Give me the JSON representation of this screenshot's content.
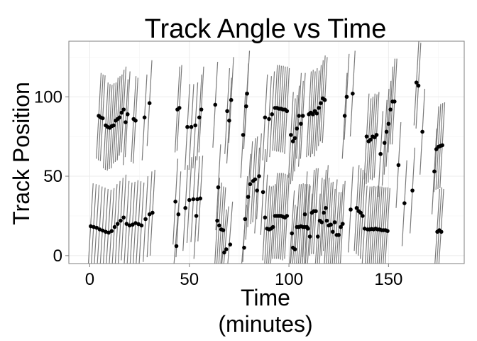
{
  "chart_data": {
    "type": "scatter",
    "title": "Track Angle vs Time",
    "xlabel_line1": "Time",
    "xlabel_line2": "(minutes)",
    "ylabel": "Track Position",
    "xlim": [
      -10.5,
      188
    ],
    "ylim": [
      -5,
      135
    ],
    "x_ticks": [
      0,
      50,
      100,
      150
    ],
    "y_ticks": [
      0,
      50,
      100
    ],
    "x_tick_labels": [
      "0",
      "50",
      "100",
      "150"
    ],
    "y_tick_labels": [
      "0",
      "50",
      "100"
    ],
    "grid": true,
    "segment_half_span_y": 27,
    "segment_half_span_x": 1.2,
    "series": [
      {
        "segments": true,
        "points": [
          [
            0.5,
            18.5
          ],
          [
            2,
            18
          ],
          [
            3.5,
            17.5
          ],
          [
            5,
            16.5
          ],
          [
            6.5,
            15.8
          ],
          [
            8,
            15
          ],
          [
            9.5,
            14.5
          ],
          [
            11,
            15.5
          ],
          [
            12.5,
            18
          ],
          [
            14,
            20
          ],
          [
            15.5,
            22
          ],
          [
            17,
            24
          ],
          [
            18.5,
            20
          ],
          [
            20,
            19
          ],
          [
            21.5,
            19.5
          ],
          [
            23,
            20.5
          ],
          [
            24.5,
            19.8
          ],
          [
            26,
            19
          ],
          [
            28,
            23
          ],
          [
            30,
            26
          ],
          [
            31.5,
            27
          ],
          [
            4.5,
            88
          ],
          [
            5.5,
            87
          ],
          [
            6.5,
            86.5
          ],
          [
            8,
            82
          ],
          [
            9,
            81
          ],
          [
            10,
            80.5
          ],
          [
            11,
            81.5
          ],
          [
            12,
            82
          ],
          [
            13,
            85
          ],
          [
            14,
            86
          ],
          [
            15,
            87
          ],
          [
            16,
            90
          ],
          [
            17,
            92
          ],
          [
            18,
            84
          ],
          [
            19,
            89
          ],
          [
            22,
            86
          ],
          [
            23,
            85
          ],
          [
            27.5,
            87
          ],
          [
            30,
            96
          ],
          [
            43,
            34
          ],
          [
            43.5,
            6
          ],
          [
            44,
            92
          ],
          [
            45,
            93
          ],
          [
            44.5,
            26
          ],
          [
            48,
            30
          ],
          [
            49,
            81
          ],
          [
            50,
            35
          ],
          [
            51,
            81
          ],
          [
            52,
            35.5
          ],
          [
            53,
            82
          ],
          [
            54,
            35.5
          ],
          [
            55,
            87
          ],
          [
            56,
            92
          ],
          [
            53.5,
            25
          ],
          [
            55.5,
            36
          ],
          [
            63,
            95
          ],
          [
            64,
            22
          ],
          [
            64.5,
            43
          ],
          [
            65,
            19
          ],
          [
            66,
            16.5
          ],
          [
            67,
            16
          ],
          [
            67.5,
            2
          ],
          [
            68.5,
            4
          ],
          [
            69,
            91
          ],
          [
            70,
            85
          ],
          [
            70.5,
            7
          ],
          [
            71,
            98
          ],
          [
            77,
            76
          ],
          [
            77.5,
            5
          ],
          [
            78,
            23
          ],
          [
            78.5,
            94
          ],
          [
            79,
            102
          ],
          [
            79.5,
            37
          ],
          [
            80.5,
            45
          ],
          [
            82,
            47
          ],
          [
            83,
            48
          ],
          [
            84,
            41
          ],
          [
            85,
            50
          ],
          [
            87,
            40
          ],
          [
            88,
            87
          ],
          [
            90,
            86
          ],
          [
            91.5,
            89
          ],
          [
            88,
            24
          ],
          [
            89,
            17
          ],
          [
            90,
            16.5
          ],
          [
            91,
            17
          ],
          [
            92,
            18
          ],
          [
            93,
            25
          ],
          [
            94,
            25
          ],
          [
            95,
            25
          ],
          [
            96,
            25
          ],
          [
            97,
            24.5
          ],
          [
            98,
            24
          ],
          [
            99,
            25
          ],
          [
            93,
            93
          ],
          [
            94,
            93
          ],
          [
            95,
            92.5
          ],
          [
            96,
            92.5
          ],
          [
            97,
            92
          ],
          [
            98,
            92
          ],
          [
            99,
            91
          ],
          [
            101,
            76
          ],
          [
            102,
            72
          ],
          [
            103,
            74
          ],
          [
            104,
            80
          ],
          [
            105,
            88
          ],
          [
            106,
            83
          ],
          [
            107,
            88
          ],
          [
            101.5,
            14
          ],
          [
            102,
            5
          ],
          [
            103,
            4
          ],
          [
            104,
            18
          ],
          [
            105,
            18
          ],
          [
            106,
            18.5
          ],
          [
            107,
            18
          ],
          [
            108,
            18
          ],
          [
            109,
            18
          ],
          [
            110,
            89
          ],
          [
            111,
            90
          ],
          [
            112,
            89
          ],
          [
            113,
            91
          ],
          [
            114,
            89.5
          ],
          [
            115,
            93
          ],
          [
            116,
            96
          ],
          [
            117,
            99
          ],
          [
            118,
            98
          ],
          [
            108,
            26
          ],
          [
            109.5,
            17
          ],
          [
            110.5,
            12
          ],
          [
            111.5,
            27
          ],
          [
            112.5,
            28
          ],
          [
            113.5,
            28
          ],
          [
            114.5,
            12
          ],
          [
            115.5,
            22
          ],
          [
            116.5,
            21
          ],
          [
            117.5,
            27
          ],
          [
            118.5,
            30
          ],
          [
            119,
            22
          ],
          [
            120,
            19
          ],
          [
            121,
            19.5
          ],
          [
            122,
            15
          ],
          [
            123,
            21
          ],
          [
            124,
            13
          ],
          [
            125,
            13
          ],
          [
            126,
            18
          ],
          [
            127,
            20
          ],
          [
            128,
            88
          ],
          [
            129,
            100
          ],
          [
            131,
            29
          ],
          [
            132,
            102
          ],
          [
            134,
            30
          ],
          [
            135,
            28
          ],
          [
            136,
            27
          ],
          [
            137,
            25
          ],
          [
            138,
            17
          ],
          [
            139,
            75
          ],
          [
            140,
            72
          ],
          [
            141,
            73
          ],
          [
            142,
            75
          ],
          [
            143,
            74.5
          ],
          [
            144,
            76
          ],
          [
            139.5,
            16.5
          ],
          [
            140.5,
            16.5
          ],
          [
            141.5,
            16.8
          ],
          [
            142.5,
            16.5
          ],
          [
            143.5,
            17
          ],
          [
            144.5,
            16.5
          ],
          [
            145.5,
            16.5
          ],
          [
            146.5,
            16
          ],
          [
            147.5,
            16
          ],
          [
            148.5,
            16
          ],
          [
            149.5,
            15.5
          ],
          [
            146,
            64
          ],
          [
            148,
            71
          ],
          [
            149,
            78
          ],
          [
            150,
            83
          ],
          [
            151,
            92
          ],
          [
            152,
            97
          ],
          [
            153,
            97
          ],
          [
            155,
            57
          ],
          [
            158,
            33
          ],
          [
            162,
            41
          ],
          [
            164,
            109
          ],
          [
            165,
            107
          ],
          [
            167,
            78
          ],
          [
            173,
            53
          ],
          [
            174,
            67
          ],
          [
            175,
            68.5
          ],
          [
            176,
            69
          ],
          [
            177,
            69.5
          ],
          [
            174.5,
            15
          ],
          [
            175.5,
            16
          ],
          [
            176.5,
            15
          ]
        ]
      }
    ]
  }
}
